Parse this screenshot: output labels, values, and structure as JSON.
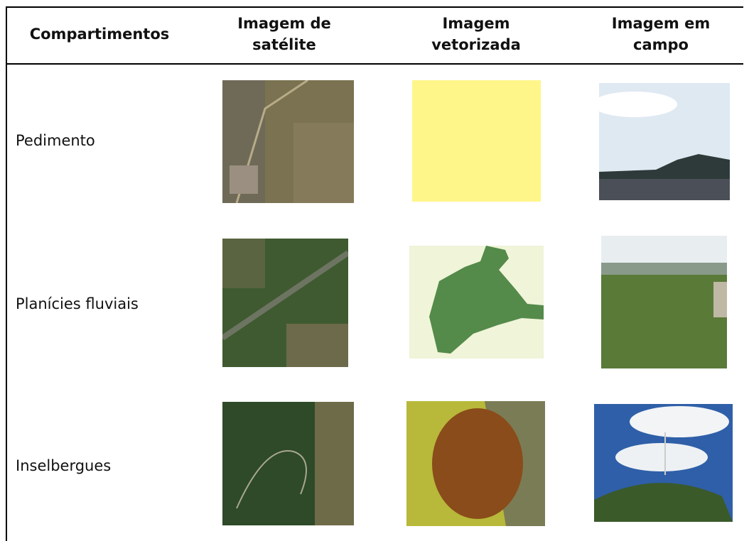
{
  "table": {
    "header": [
      "Compartimentos",
      "Imagem de satélite",
      "Imagem vetorizada",
      "Imagem em campo"
    ],
    "rows": [
      {
        "label": "Pedimento"
      },
      {
        "label": "Planícies fluviais"
      },
      {
        "label": "Inselbergues"
      }
    ]
  }
}
